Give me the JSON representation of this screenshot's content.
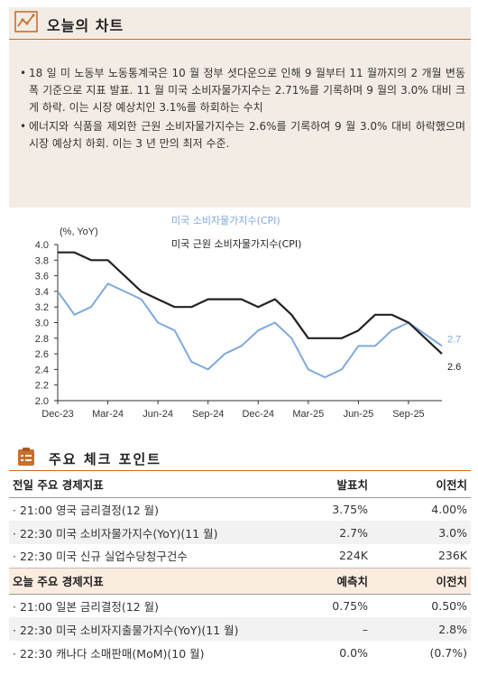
{
  "today_chart": {
    "title": "오늘의 차트",
    "bullets": [
      "18 일 미 노동부 노동통계국은 10 월 정부 셧다운으로 인해 9 월부터 11 월까지의 2 개월 변동폭 기준으로 지표 발표. 11 월 미국 소비자물가지수는 2.71%를 기록하며 9 월의 3.0% 대비 크게 하락. 이는 시장 예상치인 3.1%를 하회하는 수치",
      "에너지와 식품을 제외한 근원 소비자물가지수는 2.6%를 기록하여 9 월 3.0% 대비 하락했으며 시장 예상치 하회. 이는 3 년 만의 최저 수준."
    ]
  },
  "chart_data": {
    "type": "line",
    "unit_label": "(%, YoY)",
    "x": [
      "Dec-23",
      "Jan-24",
      "Feb-24",
      "Mar-24",
      "Apr-24",
      "May-24",
      "Jun-24",
      "Jul-24",
      "Aug-24",
      "Sep-24",
      "Oct-24",
      "Nov-24",
      "Dec-24",
      "Jan-25",
      "Feb-25",
      "Mar-25",
      "Apr-25",
      "May-25",
      "Jun-25",
      "Jul-25",
      "Aug-25",
      "Sep-25",
      "Oct-25",
      "Nov-25"
    ],
    "x_tick_labels": [
      "Dec-23",
      "Mar-24",
      "Jun-24",
      "Sep-24",
      "Dec-24",
      "Mar-25",
      "Jun-25",
      "Sep-25"
    ],
    "ylim": [
      2.0,
      4.0
    ],
    "y_ticks": [
      "4.0",
      "3.8",
      "3.6",
      "3.4",
      "3.2",
      "3.0",
      "2.8",
      "2.6",
      "2.4",
      "2.2",
      "2.0"
    ],
    "series": [
      {
        "name": "미국 소비자물가지수(CPI)",
        "color": "#7fa9dc",
        "values": [
          3.4,
          3.1,
          3.2,
          3.5,
          3.4,
          3.3,
          3.0,
          2.9,
          2.5,
          2.4,
          2.6,
          2.7,
          2.9,
          3.0,
          2.8,
          2.4,
          2.3,
          2.4,
          2.7,
          2.7,
          2.9,
          3.0,
          null,
          2.7
        ],
        "end_label": "2.7"
      },
      {
        "name": "미국 근원 소비자물가지수(CPI)",
        "color": "#222222",
        "values": [
          3.9,
          3.9,
          3.8,
          3.8,
          3.6,
          3.4,
          3.3,
          3.2,
          3.2,
          3.3,
          3.3,
          3.3,
          3.2,
          3.3,
          3.1,
          2.8,
          2.8,
          2.8,
          2.9,
          3.1,
          3.1,
          3.0,
          null,
          2.6
        ],
        "end_label": "2.6"
      }
    ],
    "grid": false,
    "legend": "top"
  },
  "check_points": {
    "title": "주요 체크 포인트",
    "prev": {
      "header": [
        "전일 주요 경제지표",
        "발표치",
        "이전치"
      ],
      "rows": [
        [
          "· 21:00 영국 금리결정(12 월)",
          "3.75%",
          "4.00%"
        ],
        [
          "· 22:30 미국 소비자물가지수(YoY)(11 월)",
          "2.7%",
          "3.0%"
        ],
        [
          "· 22:30 미국 신규 실업수당청구건수",
          "224K",
          "236K"
        ]
      ]
    },
    "today": {
      "header": [
        "오늘 주요 경제지표",
        "예측치",
        "이전치"
      ],
      "rows": [
        [
          "· 21:00 일본 금리결정(12 월)",
          "0.75%",
          "0.50%"
        ],
        [
          "· 22:30 미국 소비자지출물가지수(YoY)(11 월)",
          "–",
          "2.8%"
        ],
        [
          "· 22:30 캐나다 소매판매(MoM)(10 월)",
          "0.0%",
          "(0.7%)"
        ]
      ]
    }
  }
}
